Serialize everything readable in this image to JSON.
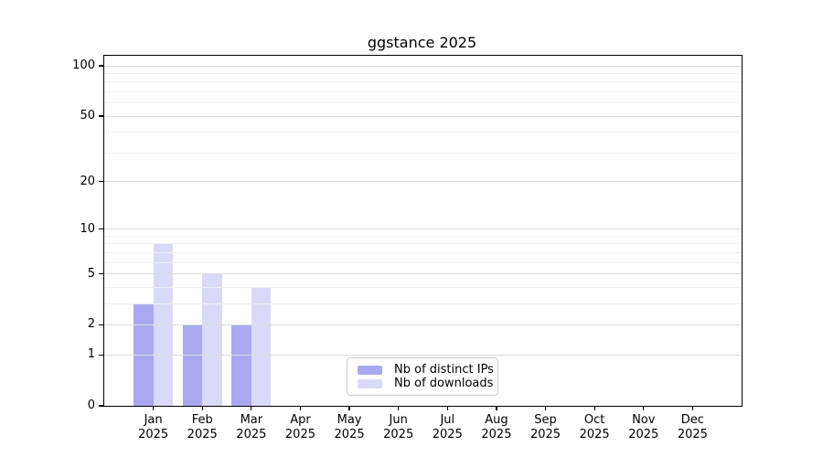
{
  "chart_data": {
    "type": "bar",
    "title": "ggstance 2025",
    "months": [
      "Jan",
      "Feb",
      "Mar",
      "Apr",
      "May",
      "Jun",
      "Jul",
      "Aug",
      "Sep",
      "Oct",
      "Nov",
      "Dec"
    ],
    "year_label": "2025",
    "series": [
      {
        "name": "Nb of distinct IPs",
        "color": "#a9a9f1",
        "values": [
          3,
          2,
          2,
          0,
          0,
          0,
          0,
          0,
          0,
          0,
          0,
          0
        ]
      },
      {
        "name": "Nb of downloads",
        "color": "#d9d9f8",
        "values": [
          8,
          5,
          4,
          0,
          0,
          0,
          0,
          0,
          0,
          0,
          0,
          0
        ]
      }
    ],
    "yscale": "log1p",
    "ylim": [
      0,
      100
    ],
    "y_ticks": [
      0,
      1,
      2,
      5,
      10,
      20,
      50,
      100
    ],
    "y_minor_ticks": [
      3,
      4,
      6,
      7,
      8,
      9,
      30,
      40,
      60,
      70,
      80,
      90
    ],
    "grid": true,
    "legend_position": "lower center inside",
    "colors": {
      "major_grid": "#dcdcdc",
      "minor_grid": "#efefef",
      "spine": "#000000",
      "text": "#000000",
      "background": "#ffffff"
    }
  }
}
